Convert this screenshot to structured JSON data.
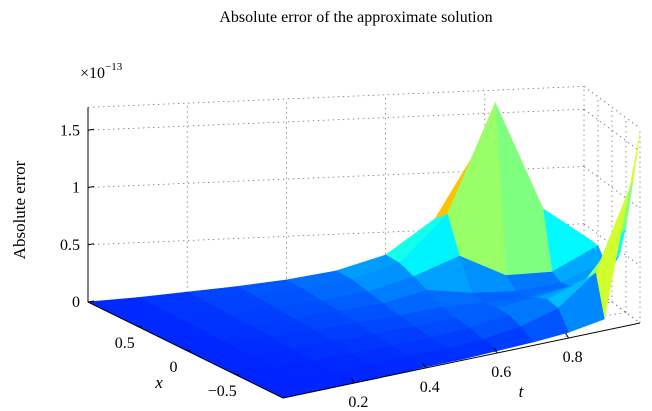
{
  "chart_data": {
    "type": "surface",
    "title": "Absolute error of the approximate solution",
    "zlabel": "Absolute error",
    "xlabel": "x",
    "ylabel": "t",
    "z_multiplier": "×10",
    "z_exponent": "−13",
    "z_ticks": [
      {
        "value": 0,
        "label": "0"
      },
      {
        "value": 0.5,
        "label": "0.5"
      },
      {
        "value": 1,
        "label": "1"
      },
      {
        "value": 1.5,
        "label": "1.5"
      }
    ],
    "x_ticks": [
      {
        "value": 0.5,
        "label": "0.5"
      },
      {
        "value": 0,
        "label": "0"
      },
      {
        "value": -0.5,
        "label": "−0.5"
      }
    ],
    "t_ticks": [
      {
        "value": 0.2,
        "label": "0.2"
      },
      {
        "value": 0.4,
        "label": "0.4"
      },
      {
        "value": 0.6,
        "label": "0.6"
      },
      {
        "value": 0.8,
        "label": "0.8"
      }
    ],
    "xlim": [
      -1,
      1
    ],
    "tlim": [
      0,
      1
    ],
    "zlim": [
      0,
      1.7
    ],
    "grid": true,
    "colormap": "jet",
    "x": [
      -1,
      -0.75,
      -0.5,
      -0.25,
      0,
      0.25,
      0.5,
      0.75,
      1
    ],
    "t": [
      0,
      0.1,
      0.2,
      0.3,
      0.4,
      0.5,
      0.6,
      0.7,
      0.8,
      0.9,
      1.0
    ],
    "z": [
      [
        0.0,
        0.0,
        0.0,
        0.0,
        0.01,
        0.01,
        0.02,
        0.03,
        0.05,
        0.1,
        1.65
      ],
      [
        0.0,
        0.0,
        0.0,
        0.01,
        0.02,
        0.03,
        0.05,
        0.1,
        0.2,
        0.45,
        1.2
      ],
      [
        0.0,
        0.0,
        0.01,
        0.02,
        0.03,
        0.05,
        0.08,
        0.14,
        0.22,
        0.35,
        0.75
      ],
      [
        0.0,
        0.01,
        0.02,
        0.04,
        0.05,
        0.07,
        0.1,
        0.14,
        0.18,
        0.25,
        0.45
      ],
      [
        0.0,
        0.01,
        0.03,
        0.05,
        0.07,
        0.09,
        0.12,
        0.12,
        0.12,
        0.18,
        0.3
      ],
      [
        0.0,
        0.02,
        0.04,
        0.06,
        0.09,
        0.12,
        0.2,
        0.14,
        0.12,
        0.16,
        0.3
      ],
      [
        0.0,
        0.02,
        0.04,
        0.07,
        0.1,
        0.15,
        0.25,
        0.4,
        0.2,
        0.2,
        0.4
      ],
      [
        0.0,
        0.02,
        0.05,
        0.08,
        0.12,
        0.18,
        0.3,
        0.7,
        1.65,
        0.7,
        0.4
      ],
      [
        0.0,
        0.02,
        0.05,
        0.08,
        0.12,
        0.18,
        0.3,
        0.6,
        1.3,
        0.55,
        0.35
      ]
    ]
  }
}
